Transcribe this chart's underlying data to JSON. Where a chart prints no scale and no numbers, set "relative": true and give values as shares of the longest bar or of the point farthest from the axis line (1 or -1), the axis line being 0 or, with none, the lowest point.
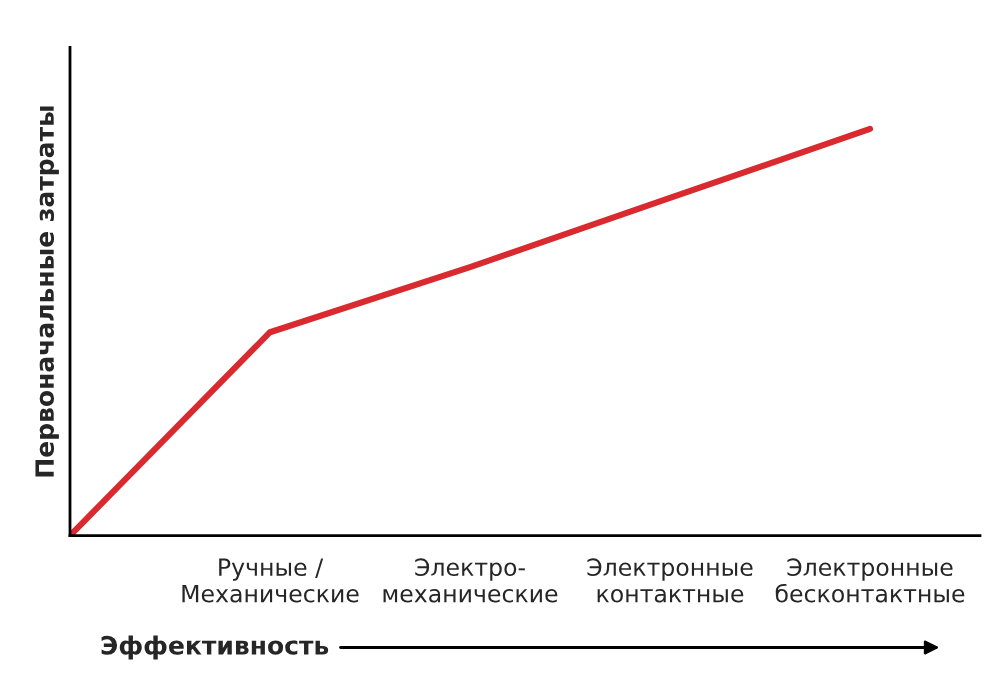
{
  "chart_data": {
    "type": "line",
    "relative": true,
    "xlabel": "Эффективность",
    "ylabel": "Первоначальные затраты",
    "categories": [
      null,
      "Ручные /\nМеханические",
      "Электро-\nмеханические",
      "Электронные\nконтактные",
      "Электронные\nбесконтактные"
    ],
    "series": [
      {
        "color": "#d92b2f",
        "values": [
          0,
          0.5,
          0.66,
          0.83,
          1
        ]
      }
    ],
    "grid": false,
    "legend": false,
    "marker": "none",
    "line_style": "solid"
  }
}
